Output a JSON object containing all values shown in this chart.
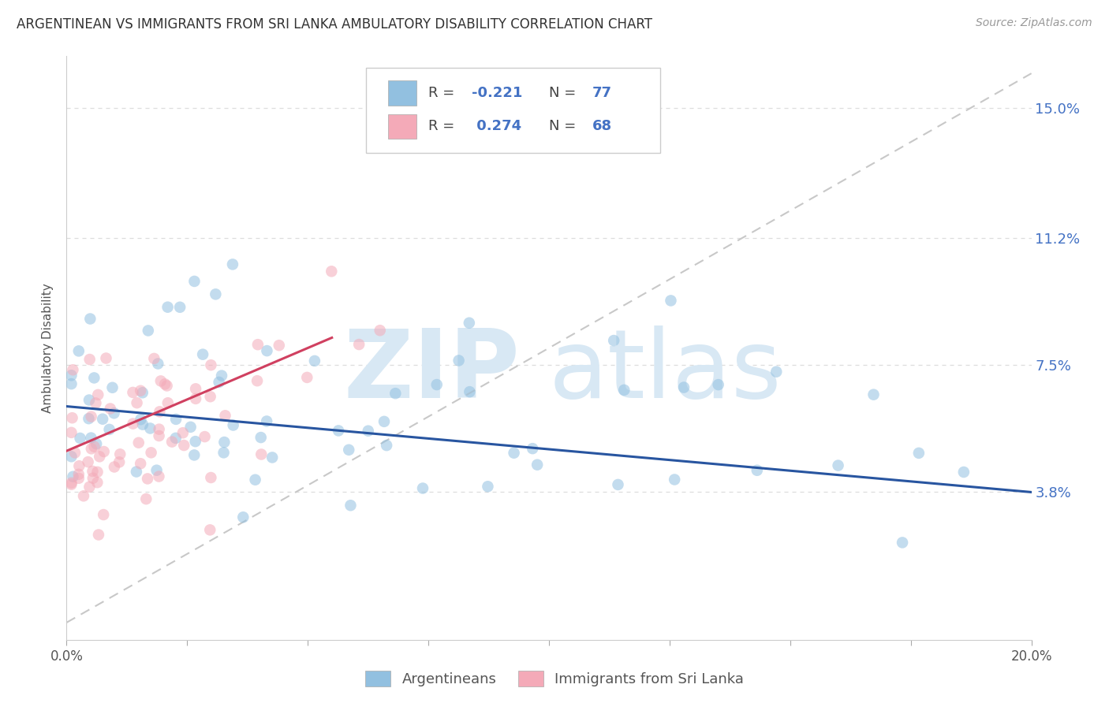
{
  "title": "ARGENTINEAN VS IMMIGRANTS FROM SRI LANKA AMBULATORY DISABILITY CORRELATION CHART",
  "source": "Source: ZipAtlas.com",
  "ylabel": "Ambulatory Disability",
  "ytick_labels": [
    "3.8%",
    "7.5%",
    "11.2%",
    "15.0%"
  ],
  "ytick_values": [
    0.038,
    0.075,
    0.112,
    0.15
  ],
  "xlim": [
    0.0,
    0.2
  ],
  "ylim": [
    -0.005,
    0.165
  ],
  "legend1_r": "-0.221",
  "legend1_n": "77",
  "legend2_r": "0.274",
  "legend2_n": "68",
  "legend_bottom": [
    "Argentineans",
    "Immigrants from Sri Lanka"
  ],
  "blue_color": "#92c0e0",
  "pink_color": "#f4aab8",
  "trend_blue_color": "#2855a0",
  "trend_pink_color": "#d04060",
  "trend_gray_color": "#c8c8c8",
  "text_blue": "#4472c4",
  "grid_color": "#dddddd",
  "watermark_color": "#d8e8f4"
}
